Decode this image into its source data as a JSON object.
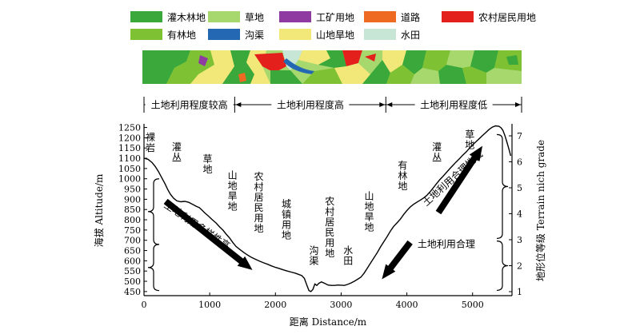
{
  "legend": {
    "items": [
      {
        "label": "灌木林地",
        "color": "#3aa83a"
      },
      {
        "label": "草地",
        "color": "#a6d86e"
      },
      {
        "label": "工矿用地",
        "color": "#8e3aa0"
      },
      {
        "label": "道路",
        "color": "#ee6a22"
      },
      {
        "label": "农村居民用地",
        "color": "#e4201c"
      },
      {
        "label": "有林地",
        "color": "#7ec233"
      },
      {
        "label": "沟渠",
        "color": "#2468b4"
      },
      {
        "label": "山地旱地",
        "color": "#f2e87a"
      },
      {
        "label": "水田",
        "color": "#c8e6d6"
      }
    ]
  },
  "zones": [
    {
      "label": "土地利用程度较高"
    },
    {
      "label": "土地利用程度高"
    },
    {
      "label": "土地利用程度低"
    }
  ],
  "chart_data": {
    "type": "line",
    "xlabel": "距离 Distance/m",
    "ylabel": "海拔 Altitude/m",
    "y2label": "地形位等级 Terrain nich grade",
    "xlim": [
      0,
      5600
    ],
    "ylim": [
      430,
      1260
    ],
    "y2lim": [
      1,
      7
    ],
    "xticks": [
      0,
      1000,
      2000,
      3000,
      4000,
      5000
    ],
    "yticks": [
      450,
      500,
      550,
      600,
      650,
      700,
      750,
      800,
      850,
      900,
      950,
      1000,
      1050,
      1100,
      1150,
      1200,
      1250
    ],
    "y2ticks": [
      1,
      2,
      3,
      4,
      5,
      6,
      7
    ],
    "zone_boundaries": [
      0,
      1380,
      3680,
      5600
    ],
    "series": [
      {
        "x": [
          0,
          60,
          120,
          170,
          220,
          270,
          320,
          360,
          400,
          450,
          500,
          560,
          620,
          680,
          740,
          800,
          840,
          880,
          920,
          980,
          1040,
          1100,
          1150,
          1200,
          1250,
          1300,
          1350,
          1400,
          1460,
          1520,
          1580,
          1640,
          1700,
          1760,
          1820,
          1880,
          1940,
          2000,
          2060,
          2120,
          2180,
          2240,
          2300,
          2350,
          2400,
          2440,
          2480,
          2510,
          2540,
          2570,
          2600,
          2630,
          2660,
          2700,
          2750,
          2800,
          2850,
          2900,
          2950,
          3000,
          3050,
          3100,
          3150,
          3200,
          3250,
          3300,
          3350,
          3400,
          3450,
          3500,
          3550,
          3600,
          3650,
          3700,
          3750,
          3800,
          3850,
          3900,
          3950,
          4000,
          4050,
          4100,
          4150,
          4200,
          4250,
          4300,
          4350,
          4400,
          4450,
          4500,
          4550,
          4600,
          4650,
          4700,
          4750,
          4800,
          4850,
          4900,
          4950,
          5000,
          5050,
          5100,
          5150,
          5200,
          5250,
          5300,
          5350,
          5400,
          5430,
          5460,
          5490,
          5520,
          5550,
          5580
        ],
        "y": [
          1100,
          1095,
          1080,
          1060,
          1035,
          1005,
          975,
          948,
          925,
          905,
          892,
          888,
          890,
          885,
          875,
          865,
          860,
          848,
          835,
          818,
          800,
          783,
          765,
          750,
          730,
          712,
          690,
          670,
          655,
          640,
          627,
          616,
          607,
          598,
          590,
          583,
          575,
          568,
          562,
          556,
          550,
          545,
          540,
          534,
          528,
          515,
          480,
          455,
          450,
          460,
          487,
          480,
          490,
          497,
          490,
          482,
          480,
          480,
          482,
          481,
          480,
          485,
          492,
          500,
          510,
          520,
          540,
          565,
          590,
          615,
          640,
          668,
          693,
          718,
          745,
          768,
          785,
          803,
          825,
          845,
          862,
          875,
          885,
          895,
          905,
          918,
          935,
          955,
          975,
          995,
          1012,
          1030,
          1048,
          1065,
          1082,
          1098,
          1115,
          1130,
          1148,
          1165,
          1180,
          1195,
          1210,
          1225,
          1240,
          1252,
          1258,
          1256,
          1250,
          1237,
          1212,
          1182,
          1148,
          1112
        ]
      }
    ],
    "annotations": [
      {
        "text": "裸岩",
        "x": 0,
        "y": 1185
      },
      {
        "text": "灌丛",
        "x": 400,
        "y": 1140
      },
      {
        "text": "草地",
        "x": 870,
        "y": 1080
      },
      {
        "text": "山地旱地",
        "x": 1250,
        "y": 1000
      },
      {
        "text": "农村居民用地",
        "x": 1650,
        "y": 995
      },
      {
        "text": "城镇用地",
        "x": 2070,
        "y": 860
      },
      {
        "text": "沟渠",
        "x": 2490,
        "y": 635
      },
      {
        "text": "农村居民用地",
        "x": 2730,
        "y": 875
      },
      {
        "text": "水田",
        "x": 3010,
        "y": 635
      },
      {
        "text": "山地旱地",
        "x": 3330,
        "y": 900
      },
      {
        "text": "有林地",
        "x": 3840,
        "y": 1050
      },
      {
        "text": "灌丛",
        "x": 4360,
        "y": 1140
      },
      {
        "text": "草地",
        "x": 4860,
        "y": 1200
      },
      {
        "text": "土地利用多样性高",
        "x": 780,
        "y": 760
      },
      {
        "text": "土地利用合理",
        "x": 4600,
        "y": 665
      },
      {
        "text": "土地利用合理性低",
        "x": 4730,
        "y": 990
      }
    ]
  }
}
